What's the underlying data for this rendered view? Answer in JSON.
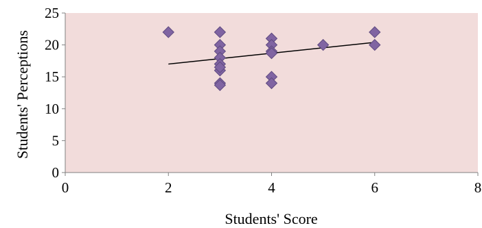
{
  "chart_data": {
    "type": "scatter",
    "title": "",
    "xlabel": "Students' Score",
    "ylabel": "Students' Perceptions",
    "xlim": [
      0,
      8
    ],
    "ylim": [
      0,
      25
    ],
    "x_ticks": [
      "0",
      "2",
      "4",
      "6",
      "8"
    ],
    "y_ticks": [
      "0",
      "5",
      "10",
      "15",
      "20",
      "25"
    ],
    "grid": false,
    "legend": "none",
    "colors": {
      "plot_background": "#f2dcdb",
      "marker": "#8064a2",
      "marker_edge": "#5f4a80",
      "trendline": "#000000",
      "axis": "#808080"
    },
    "series": [
      {
        "x": [
          2,
          3,
          3,
          3,
          3,
          3,
          3,
          3,
          3,
          3,
          4,
          4,
          4,
          4,
          4,
          4,
          5,
          6,
          6
        ],
        "y": [
          22,
          22,
          20,
          19,
          18,
          17,
          16,
          14,
          13.7,
          16.5,
          21,
          20,
          19,
          18.7,
          15,
          14,
          20,
          22,
          20
        ]
      }
    ],
    "trendline": {
      "type": "linear",
      "x": [
        2,
        6
      ],
      "y": [
        17,
        20.4
      ]
    }
  }
}
